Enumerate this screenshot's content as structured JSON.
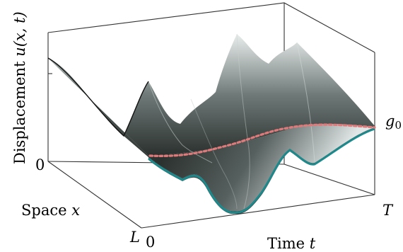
{
  "axes": {
    "z_label_word": "Displacement ",
    "z_label_math": "u(x, t)",
    "x_label_word": "Space ",
    "x_label_math": "x",
    "t_label_word": "Time ",
    "t_label_math": "t",
    "z_tick_zero": "0",
    "x_tick_L": "L",
    "t_tick_zero": "0",
    "t_tick_T": "T",
    "g_label_base": "g",
    "g_label_sub": "0"
  },
  "colors": {
    "surface_dark": "#2e3533",
    "surface_light": "#dde4e3",
    "edge_curve": "#1c8a8c",
    "target_curve": "#e07a7a",
    "box_line": "#333333"
  },
  "icons": {
    "surface": "displacement-surface",
    "target_curve": "dotted-target-curve",
    "edge_curve": "teal-boundary-curve"
  }
}
